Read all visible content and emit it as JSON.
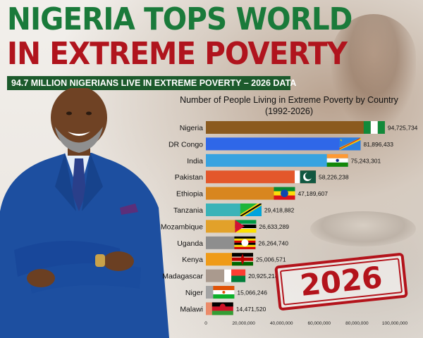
{
  "headline": {
    "line1": "NIGERIA TOPS WORLD",
    "line2": "IN EXTREME POVERTY"
  },
  "subheadline": "94.7 MILLION NIGERIANS LIVE IN EXTREME POVERTY – 2026 DATA",
  "stamp_text": "2026",
  "colors": {
    "headline_green": "#1a7a3a",
    "headline_red": "#b0141d",
    "subbar_bg": "#1c5a2c",
    "stamp_red": "#b3131b"
  },
  "chart_data": {
    "type": "bar",
    "orientation": "horizontal",
    "title": "Number of People Living in Extreme Poverty by Country",
    "subtitle": "(1992-2026)",
    "categories": [
      "Nigeria",
      "DR Congo",
      "India",
      "Pakistan",
      "Ethiopia",
      "Tanzania",
      "Mozambique",
      "Uganda",
      "Kenya",
      "Madagascar",
      "Niger",
      "Malawi"
    ],
    "values": [
      94725734,
      81896433,
      75243301,
      58226238,
      47189607,
      29418882,
      26633289,
      26264740,
      25006571,
      20925218,
      15066246,
      14471520
    ],
    "data_labels": [
      "94,725,734",
      "81,896,433",
      "75,243,301",
      "58,226,238",
      "47,189,607",
      "29,418,882",
      "26,633,289",
      "26,264,740",
      "25,006,571",
      "20,925,218",
      "15,066,246",
      "14,471,520"
    ],
    "bar_colors": [
      "#8b5a1e",
      "#2f67e8",
      "#38a3e0",
      "#e3572b",
      "#d8861f",
      "#3ab3b8",
      "#e2a12a",
      "#8e8e8e",
      "#ef9b18",
      "#aa9a8e",
      "#a3a3a3",
      "#eb8b6a"
    ],
    "flags": [
      "nigeria-flag",
      "drcongo-flag",
      "india-flag",
      "pakistan-flag",
      "ethiopia-flag",
      "tanzania-flag",
      "mozambique-flag",
      "uganda-flag",
      "kenya-flag",
      "madagascar-flag",
      "niger-flag",
      "malawi-flag"
    ],
    "x_ticks": [
      0,
      20000000,
      40000000,
      60000000,
      80000000,
      100000000
    ],
    "x_tick_labels": [
      "0",
      "20,000,000",
      "40,000,000",
      "60,000,000",
      "80,000,000",
      "100,000,000"
    ],
    "xlim": [
      0,
      100000000
    ],
    "grid": false,
    "legend": "none"
  }
}
